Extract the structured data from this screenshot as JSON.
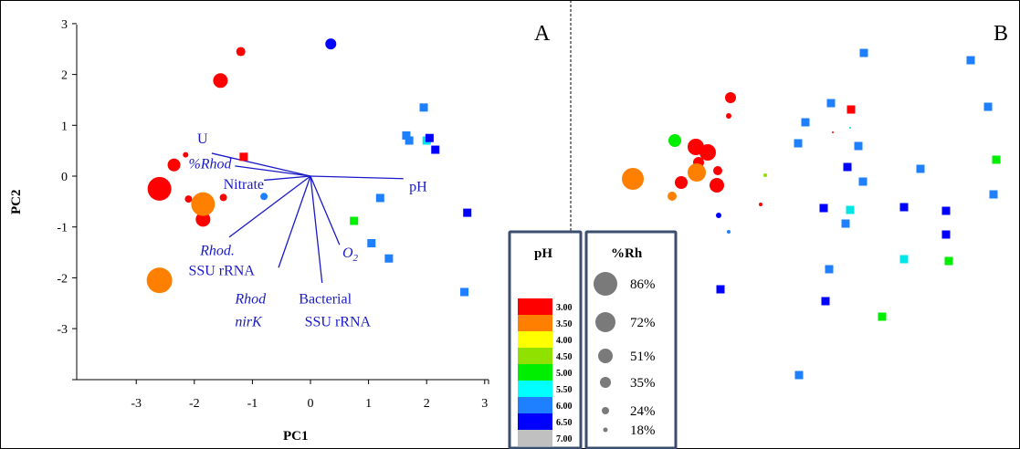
{
  "chart_data": [
    {
      "panel": "A",
      "type": "scatter",
      "xlabel": "PC1",
      "ylabel": "PC2",
      "xlim": [
        -4,
        3.3
      ],
      "ylim": [
        -4,
        3.1
      ],
      "xticks": [
        "-3",
        "-2",
        "-1",
        "0",
        "1",
        "2",
        "3"
      ],
      "yticks": [
        "3",
        "2",
        "1",
        "0",
        "-1",
        "-2",
        "-3"
      ],
      "vectors": [
        {
          "label": "U",
          "italic": false,
          "x": -1.7,
          "y": 0.45,
          "tx": -1.95,
          "ty": 0.65
        },
        {
          "label": "%Rhod",
          "italic": true,
          "x": -1.3,
          "y": 0.2,
          "tx": -2.1,
          "ty": 0.15
        },
        {
          "label": "Nitrate",
          "italic": false,
          "x": -0.8,
          "y": -0.08,
          "tx": -1.5,
          "ty": -0.25
        },
        {
          "label": "pH",
          "italic": false,
          "x": 1.6,
          "y": -0.05,
          "tx": 1.7,
          "ty": -0.3
        },
        {
          "label": "Rhod.",
          "italic": true,
          "x": -1.4,
          "y": -1.2,
          "tx": -1.9,
          "ty": -1.55
        },
        {
          "label": "SSU rRNA",
          "italic": false,
          "x": -1.4,
          "y": -1.2,
          "tx": -2.1,
          "ty": -1.95
        },
        {
          "label": "O2",
          "italic": true,
          "x": 0.5,
          "y": -1.35,
          "tx": 0.55,
          "ty": -1.6
        },
        {
          "label": "Rhod",
          "italic": true,
          "x": -0.55,
          "y": -1.8,
          "tx": -1.3,
          "ty": -2.5
        },
        {
          "label": "nirK",
          "italic": true,
          "x": -0.55,
          "y": -1.8,
          "tx": -1.3,
          "ty": -2.95
        },
        {
          "label": "Bacterial",
          "italic": false,
          "x": 0.2,
          "y": -2.1,
          "tx": -0.2,
          "ty": -2.5
        },
        {
          "label": "SSU rRNA",
          "italic": false,
          "x": 0.2,
          "y": -2.1,
          "tx": -0.1,
          "ty": -2.95
        }
      ],
      "circles": [
        {
          "x": -1.2,
          "y": 2.45,
          "r": 5,
          "c": "#ff0000"
        },
        {
          "x": -1.55,
          "y": 1.88,
          "r": 8,
          "c": "#ff0000"
        },
        {
          "x": 0.35,
          "y": 2.6,
          "r": 6,
          "c": "#0000ff"
        },
        {
          "x": -2.6,
          "y": -0.25,
          "r": 13,
          "c": "#ff0000"
        },
        {
          "x": -2.35,
          "y": 0.22,
          "r": 7,
          "c": "#ff0000"
        },
        {
          "x": -2.15,
          "y": 0.42,
          "r": 3,
          "c": "#ff0000"
        },
        {
          "x": -2.1,
          "y": -0.45,
          "r": 4,
          "c": "#ff0000"
        },
        {
          "x": -1.85,
          "y": -0.85,
          "r": 8,
          "c": "#ff0000"
        },
        {
          "x": -1.85,
          "y": -0.55,
          "r": 13,
          "c": "#ff8000"
        },
        {
          "x": -1.5,
          "y": -0.42,
          "r": 4,
          "c": "#ff0000"
        },
        {
          "x": -2.6,
          "y": -2.05,
          "r": 14,
          "c": "#ff8000"
        },
        {
          "x": -0.8,
          "y": -0.4,
          "r": 4,
          "c": "#1e7fff"
        }
      ],
      "squares": [
        {
          "x": -1.15,
          "y": 0.38,
          "s": 9,
          "c": "#ff0000"
        },
        {
          "x": 0.75,
          "y": -0.88,
          "s": 9,
          "c": "#00ee00"
        },
        {
          "x": 1.2,
          "y": -0.43,
          "s": 9,
          "c": "#1e7fff"
        },
        {
          "x": 1.05,
          "y": -1.32,
          "s": 9,
          "c": "#1e7fff"
        },
        {
          "x": 1.35,
          "y": -1.62,
          "s": 9,
          "c": "#1e7fff"
        },
        {
          "x": 1.65,
          "y": 0.8,
          "s": 9,
          "c": "#1e7fff"
        },
        {
          "x": 1.7,
          "y": 0.7,
          "s": 9,
          "c": "#1e7fff"
        },
        {
          "x": 1.95,
          "y": 1.35,
          "s": 9,
          "c": "#1e7fff"
        },
        {
          "x": 2.0,
          "y": 0.7,
          "s": 9,
          "c": "#00e5e5"
        },
        {
          "x": 2.05,
          "y": 0.75,
          "s": 9,
          "c": "#0000ff"
        },
        {
          "x": 2.15,
          "y": 0.52,
          "s": 9,
          "c": "#0000ff"
        },
        {
          "x": 2.7,
          "y": -0.72,
          "s": 9,
          "c": "#0000ff"
        },
        {
          "x": 2.65,
          "y": -2.28,
          "s": 9,
          "c": "#1e7fff"
        }
      ]
    },
    {
      "panel": "B",
      "type": "scatter",
      "circles": [
        {
          "x": 800,
          "y": 107,
          "r": 6,
          "c": "#ff0000"
        },
        {
          "x": 798,
          "y": 127,
          "r": 3,
          "c": "#ff0000"
        },
        {
          "x": 739,
          "y": 154,
          "r": 7,
          "c": "#00ee00"
        },
        {
          "x": 762,
          "y": 161,
          "r": 9,
          "c": "#ff0000"
        },
        {
          "x": 775,
          "y": 167,
          "r": 9,
          "c": "#ff0000"
        },
        {
          "x": 765,
          "y": 178,
          "r": 6,
          "c": "#ff0000"
        },
        {
          "x": 786,
          "y": 187,
          "r": 5,
          "c": "#ff0000"
        },
        {
          "x": 693,
          "y": 196,
          "r": 12,
          "c": "#ff8000"
        },
        {
          "x": 763,
          "y": 189,
          "r": 10,
          "c": "#ff8000"
        },
        {
          "x": 746,
          "y": 200,
          "r": 7,
          "c": "#ff0000"
        },
        {
          "x": 785,
          "y": 203,
          "r": 8,
          "c": "#ff0000"
        },
        {
          "x": 736,
          "y": 215,
          "r": 5,
          "c": "#ff8000"
        },
        {
          "x": 838,
          "y": 192,
          "r": 2,
          "c": "#90e000"
        },
        {
          "x": 833,
          "y": 224,
          "r": 2,
          "c": "#ff0000"
        },
        {
          "x": 787,
          "y": 236,
          "r": 3,
          "c": "#0000ff"
        },
        {
          "x": 798,
          "y": 254,
          "r": 2,
          "c": "#1e7fff"
        },
        {
          "x": 912,
          "y": 145,
          "r": 1,
          "c": "#ff0000"
        },
        {
          "x": 931,
          "y": 140,
          "r": 1,
          "c": "#00e5e5"
        }
      ],
      "squares": [
        {
          "x": 946,
          "y": 58,
          "s": 9,
          "c": "#1e7fff"
        },
        {
          "x": 1063,
          "y": 66,
          "s": 9,
          "c": "#1e7fff"
        },
        {
          "x": 910,
          "y": 113,
          "s": 9,
          "c": "#1e7fff"
        },
        {
          "x": 932,
          "y": 120,
          "s": 9,
          "c": "#ff0000"
        },
        {
          "x": 1082,
          "y": 117,
          "s": 9,
          "c": "#1e7fff"
        },
        {
          "x": 882,
          "y": 134,
          "s": 9,
          "c": "#1e7fff"
        },
        {
          "x": 874,
          "y": 157,
          "s": 9,
          "c": "#1e7fff"
        },
        {
          "x": 940,
          "y": 160,
          "s": 9,
          "c": "#1e7fff"
        },
        {
          "x": 1091,
          "y": 175,
          "s": 9,
          "c": "#00ee00"
        },
        {
          "x": 928,
          "y": 183,
          "s": 9,
          "c": "#0000ff"
        },
        {
          "x": 1008,
          "y": 185,
          "s": 9,
          "c": "#1e7fff"
        },
        {
          "x": 945,
          "y": 199,
          "s": 9,
          "c": "#1e7fff"
        },
        {
          "x": 1088,
          "y": 213,
          "s": 9,
          "c": "#1e7fff"
        },
        {
          "x": 902,
          "y": 228,
          "s": 9,
          "c": "#0000ff"
        },
        {
          "x": 931,
          "y": 230,
          "s": 9,
          "c": "#00e5e5"
        },
        {
          "x": 990,
          "y": 227,
          "s": 9,
          "c": "#0000ff"
        },
        {
          "x": 1036,
          "y": 231,
          "s": 9,
          "c": "#0000ff"
        },
        {
          "x": 926,
          "y": 245,
          "s": 9,
          "c": "#1e7fff"
        },
        {
          "x": 1036,
          "y": 257,
          "s": 9,
          "c": "#0000ff"
        },
        {
          "x": 990,
          "y": 284,
          "s": 9,
          "c": "#00e5e5"
        },
        {
          "x": 1039,
          "y": 286,
          "s": 9,
          "c": "#00ee00"
        },
        {
          "x": 908,
          "y": 295,
          "s": 9,
          "c": "#1e7fff"
        },
        {
          "x": 789,
          "y": 317,
          "s": 9,
          "c": "#0000ff"
        },
        {
          "x": 904,
          "y": 330,
          "s": 9,
          "c": "#0000ff"
        },
        {
          "x": 966,
          "y": 347,
          "s": 9,
          "c": "#00ee00"
        },
        {
          "x": 875,
          "y": 411,
          "s": 9,
          "c": "#1e7fff"
        }
      ]
    }
  ],
  "labels": {
    "panel_a": "A",
    "panel_b": "B"
  },
  "legend_ph": {
    "title": "pH",
    "items": [
      {
        "label": "3.00",
        "color": "#ff0000"
      },
      {
        "label": "3.50",
        "color": "#ff8000"
      },
      {
        "label": "4.00",
        "color": "#ffff00"
      },
      {
        "label": "4.50",
        "color": "#90e000"
      },
      {
        "label": "5.00",
        "color": "#00ee00"
      },
      {
        "label": "5.50",
        "color": "#00ffff"
      },
      {
        "label": "6.00",
        "color": "#1e7fff"
      },
      {
        "label": "6.50",
        "color": "#0000ff"
      },
      {
        "label": "7.00",
        "color": "#c0c0c0"
      }
    ]
  },
  "legend_rh": {
    "title": "%Rh",
    "items": [
      {
        "label": "86%",
        "r": 13
      },
      {
        "label": "72%",
        "r": 11
      },
      {
        "label": "51%",
        "r": 8
      },
      {
        "label": "35%",
        "r": 6
      },
      {
        "label": "24%",
        "r": 4
      },
      {
        "label": "18%",
        "r": 2.5
      }
    ]
  }
}
